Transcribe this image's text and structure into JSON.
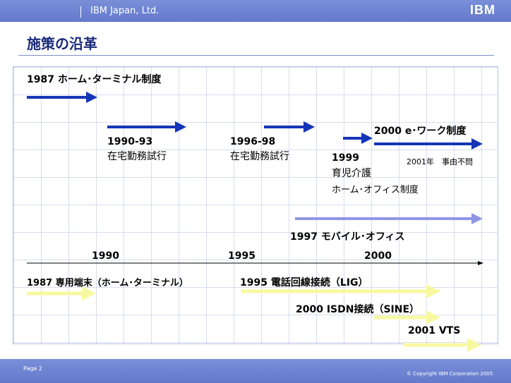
{
  "header": {
    "company": "IBM Japan, Ltd.",
    "logo": "IBM"
  },
  "title": "施策の沿革",
  "timeline": {
    "telework": {
      "home_terminal": "1987 ホーム･ターミナル制度",
      "trial_1990_year": "1990-93",
      "trial_1990_label": "在宅勤務試行",
      "trial_1996_year": "1996-98",
      "trial_1996_label": "在宅勤務試行",
      "ework": "2000 e･ワーク制度",
      "ework_note": "2001年　事由不問",
      "care_year": "1999",
      "care_line1": "育児介護",
      "care_line2": "ホーム･オフィス制度",
      "mobile_office": "1997 モバイル･オフィス"
    },
    "axis": {
      "y1990": "1990",
      "y1995": "1995",
      "y2000": "2000"
    },
    "infrastructure": {
      "terminal": "1987 専用端末（ホーム･ターミナル）",
      "lig": "1995 電話回線接続（LIG）",
      "sine": "2000 ISDN接続（SINE）",
      "vts": "2001 VTS"
    },
    "colors": {
      "dark_arrow": "#1535b8",
      "light_arrow": "#8e96e6",
      "yellow_arrow": "#f8f8a0"
    }
  },
  "footer": {
    "page": "Page 2",
    "copyright": "© Copyright IBM Corporation 2005"
  }
}
